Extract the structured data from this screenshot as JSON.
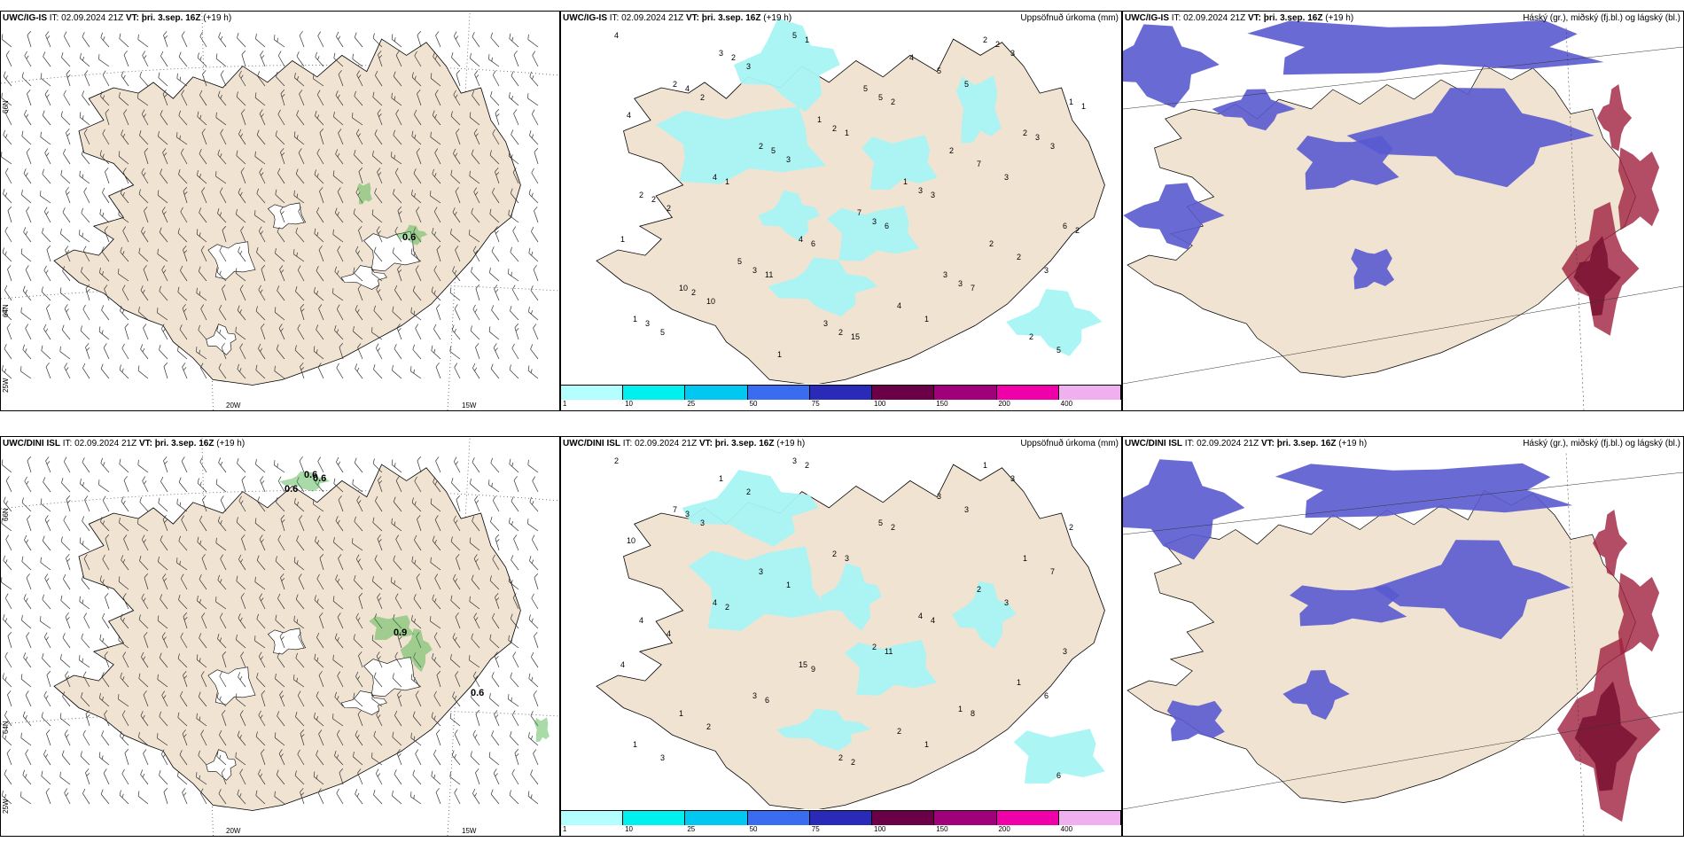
{
  "panels": [
    {
      "id": "p1",
      "title_model": "UWC/IG-IS",
      "title_it_label": "IT:",
      "title_it": "02.09.2024 21Z",
      "title_vt_label": "VT:",
      "title_vt": "þri. 3.sep. 16Z",
      "title_lead": "(+19 h)",
      "right_title": "",
      "type": "wind",
      "lon_labels": [
        "20W",
        "15W"
      ],
      "lat_labels": [
        "66N",
        "64N",
        "25W"
      ],
      "numbers": [
        "0.6"
      ]
    },
    {
      "id": "p2",
      "title_model": "UWC/IG-IS",
      "title_it_label": "IT:",
      "title_it": "02.09.2024 21Z",
      "title_vt_label": "VT:",
      "title_vt": "þri. 3.sep. 16Z",
      "title_lead": "(+19 h)",
      "right_title": "Uppsöfnuð úrkoma (mm)",
      "type": "precip",
      "numbers": [
        "4",
        "2",
        "3",
        "3",
        "3",
        "3",
        "5",
        "3",
        "2",
        "3",
        "3",
        "1",
        "10",
        "5",
        "5",
        "5",
        "3",
        "2",
        "3",
        "2",
        "1",
        "3",
        "4",
        "4",
        "4",
        "6",
        "7",
        "5",
        "2",
        "2",
        "1",
        "3",
        "2",
        "1",
        "3",
        "1",
        "2",
        "7",
        "6",
        "10",
        "11",
        "15",
        "5",
        "2",
        "2",
        "1",
        "6",
        "4",
        "2",
        "1",
        "4",
        "5",
        "7",
        "3",
        "2",
        "3",
        "2",
        "1",
        "1",
        "2",
        "2",
        "2",
        "1",
        "5",
        "2",
        "3",
        "2",
        "5",
        "3",
        "4",
        "2",
        "1"
      ]
    },
    {
      "id": "p3",
      "title_model": "UWC/IG-IS",
      "title_it_label": "IT:",
      "title_it": "02.09.2024 21Z",
      "title_vt_label": "VT:",
      "title_vt": "þri. 3.sep. 16Z",
      "title_lead": "(+19 h)",
      "right_title": "Háský (gr.), miðský (fj.bl.) og lágský (bl.)",
      "type": "cloud"
    },
    {
      "id": "p4",
      "title_model": "UWC/DINI ISL",
      "title_it_label": "IT:",
      "title_it": "02.09.2024 21Z",
      "title_vt_label": "VT:",
      "title_vt": "þri. 3.sep. 16Z",
      "title_lead": "(+19 h)",
      "right_title": "",
      "type": "wind",
      "lon_labels": [
        "20W",
        "15W"
      ],
      "lat_labels": [
        "66N",
        "64N",
        "25W"
      ],
      "numbers": [
        "0.6",
        "0.6",
        "0.6",
        "0.9",
        "0.6"
      ]
    },
    {
      "id": "p5",
      "title_model": "UWC/DINI ISL",
      "title_it_label": "IT:",
      "title_it": "02.09.2024 21Z",
      "title_vt_label": "VT:",
      "title_vt": "þri. 3.sep. 16Z",
      "title_lead": "(+19 h)",
      "right_title": "Uppsöfnuð úrkoma (mm)",
      "type": "precip",
      "numbers": [
        "2",
        "3",
        "1",
        "2",
        "1",
        "6",
        "3",
        "2",
        "2",
        "4",
        "3",
        "4",
        "2",
        "3",
        "5",
        "3",
        "7",
        "4",
        "3",
        "2",
        "1",
        "3",
        "10",
        "4",
        "15",
        "11",
        "8",
        "6",
        "7",
        "3",
        "3",
        "4",
        "1",
        "1",
        "1",
        "2",
        "2",
        "2",
        "3",
        "1",
        "6",
        "2",
        "3",
        "1",
        "4",
        "2",
        "9",
        "2",
        "1",
        "2",
        "3"
      ]
    },
    {
      "id": "p6",
      "title_model": "UWC/DINI ISL",
      "title_it_label": "IT:",
      "title_it": "02.09.2024 21Z",
      "title_vt_label": "VT:",
      "title_vt": "þri. 3.sep. 16Z",
      "title_lead": "(+19 h)",
      "right_title": "Háský (gr.), miðský (fj.bl.) og lágský (bl.)",
      "type": "cloud"
    }
  ],
  "precip_legend": {
    "ticks": [
      "1",
      "10",
      "25",
      "50",
      "75",
      "100",
      "150",
      "200",
      "400"
    ],
    "colors": [
      "#b3ffff",
      "#00f0f0",
      "#00c8f0",
      "#3a6cf0",
      "#2a2ab8",
      "#6a0046",
      "#a0007a",
      "#f000a8",
      "#f0b0f0"
    ]
  },
  "colors": {
    "land": "#f1e3d1",
    "ice": "#ffffff",
    "precip_light": "#a8f4f4",
    "precip_mid": "#00e6e6",
    "cloud_mid": "#5a5ad0",
    "cloud_low": "#3f7fe0",
    "cloud_high": "#a02040",
    "cloud_high_dark": "#7a1030",
    "wind_green": "#40b040"
  }
}
